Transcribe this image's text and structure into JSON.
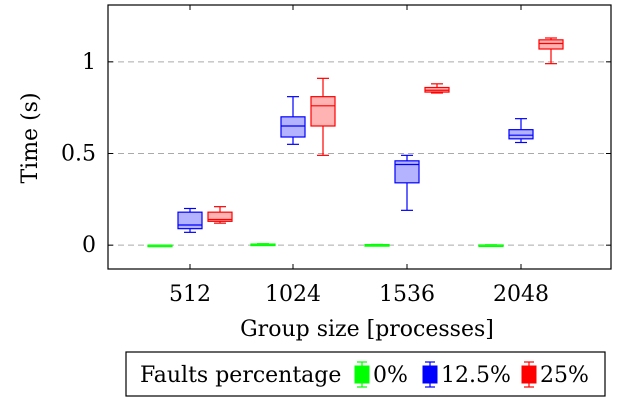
{
  "chart_data": {
    "type": "boxplot",
    "xlabel": "Group size [processes]",
    "ylabel": "Time (s)",
    "categories": [
      "512",
      "1024",
      "1536",
      "2048"
    ],
    "ylim": [
      -0.13,
      1.31
    ],
    "yticks": [
      0,
      0.5,
      1
    ],
    "ytick_labels": [
      "0",
      "0.5",
      "1"
    ],
    "grid": "horizontal dashed at y ticks",
    "legend": {
      "placement": "bottom",
      "title": "Faults percentage",
      "entries": [
        "0%",
        "12.5%",
        "25%"
      ]
    },
    "series": [
      {
        "name": "0%",
        "stroke": "#00ff00",
        "fill": "#b3ffb3",
        "boxes": [
          {
            "category": "512",
            "min": 0.0,
            "q1": 0.0,
            "median": 0.0,
            "q3": 0.0,
            "max": 0.0
          },
          {
            "category": "1024",
            "min": 0.002,
            "q1": 0.004,
            "median": 0.005,
            "q3": 0.006,
            "max": 0.008
          },
          {
            "category": "1536",
            "min": 0.0,
            "q1": 0.001,
            "median": 0.002,
            "q3": 0.003,
            "max": 0.004
          },
          {
            "category": "2048",
            "min": 0.0,
            "q1": 0.0,
            "median": 0.0,
            "q3": 0.001,
            "max": 0.002
          }
        ]
      },
      {
        "name": "12.5%",
        "stroke": "#0000ff",
        "fill": "#b3b3ff",
        "boxes": [
          {
            "category": "512",
            "min": 0.07,
            "q1": 0.09,
            "median": 0.11,
            "q3": 0.18,
            "max": 0.2
          },
          {
            "category": "1024",
            "min": 0.55,
            "q1": 0.59,
            "median": 0.65,
            "q3": 0.7,
            "max": 0.81
          },
          {
            "category": "1536",
            "min": 0.19,
            "q1": 0.34,
            "median": 0.44,
            "q3": 0.46,
            "max": 0.49
          },
          {
            "category": "2048",
            "min": 0.56,
            "q1": 0.58,
            "median": 0.6,
            "q3": 0.63,
            "max": 0.69
          }
        ]
      },
      {
        "name": "25%",
        "stroke": "#ff0000",
        "fill": "#ffb3b3",
        "boxes": [
          {
            "category": "512",
            "min": 0.12,
            "q1": 0.13,
            "median": 0.14,
            "q3": 0.18,
            "max": 0.21
          },
          {
            "category": "1024",
            "min": 0.49,
            "q1": 0.65,
            "median": 0.76,
            "q3": 0.81,
            "max": 0.91
          },
          {
            "category": "1536",
            "min": 0.83,
            "q1": 0.835,
            "median": 0.845,
            "q3": 0.86,
            "max": 0.88
          },
          {
            "category": "2048",
            "min": 0.99,
            "q1": 1.07,
            "median": 1.1,
            "q3": 1.12,
            "max": 1.13
          }
        ]
      }
    ]
  }
}
